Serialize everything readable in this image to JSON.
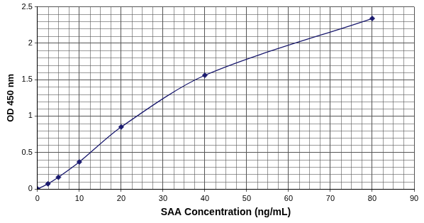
{
  "chart_data": {
    "type": "line",
    "x_label": "SAA Concentration (ng/mL)",
    "y_label": "OD 450 nm",
    "x": [
      0,
      2.5,
      5,
      10,
      20,
      40,
      80
    ],
    "values": [
      0,
      0.07,
      0.16,
      0.37,
      0.85,
      1.56,
      2.34
    ],
    "color": "#1a1a6e",
    "marker": "diamond",
    "line_style": "solid",
    "xlim": [
      0,
      90
    ],
    "xticks": [
      0,
      10,
      20,
      30,
      40,
      50,
      60,
      70,
      80,
      90
    ],
    "ylim": [
      0,
      2.5
    ],
    "yticks": [
      0,
      0.5,
      1,
      1.5,
      2,
      2.5
    ],
    "grid": true
  }
}
